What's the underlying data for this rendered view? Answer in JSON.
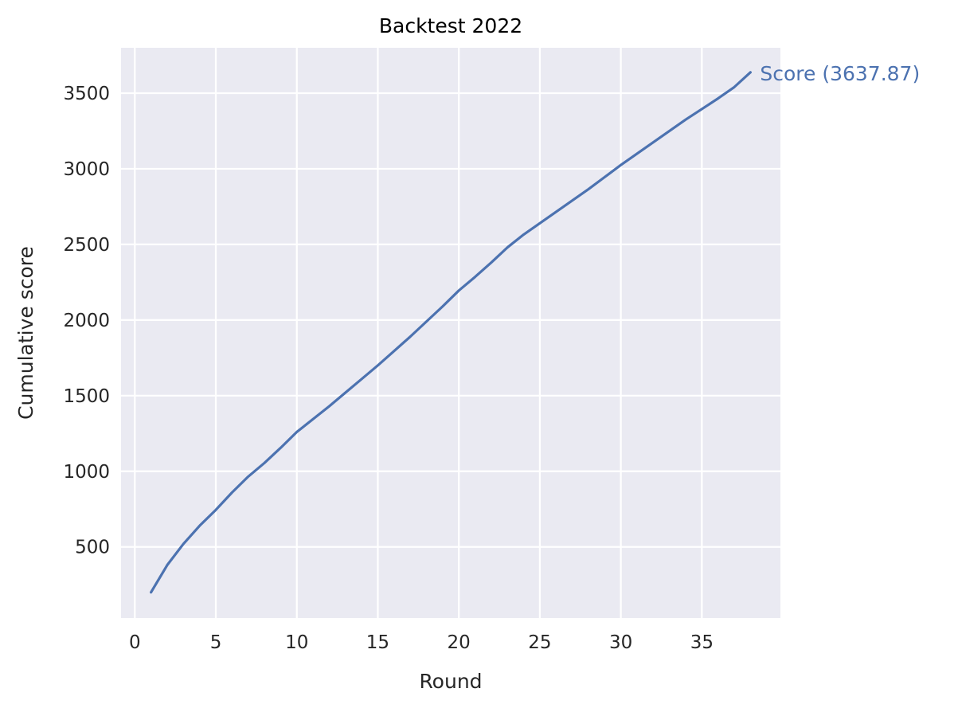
{
  "chart_data": {
    "type": "line",
    "title": "Backtest 2022",
    "xlabel": "Round",
    "ylabel": "Cumulative score",
    "xlim": [
      -0.85,
      39.85
    ],
    "ylim": [
      30,
      3800
    ],
    "xticks": [
      0,
      5,
      10,
      15,
      20,
      25,
      30,
      35
    ],
    "yticks": [
      500,
      1000,
      1500,
      2000,
      2500,
      3000,
      3500
    ],
    "grid": true,
    "legend": "none",
    "colors": {
      "plot_background": "#eaeaf2",
      "grid": "#ffffff",
      "line": "#4c72b0",
      "text": "#262626"
    },
    "series": [
      {
        "end_label": "Score (3637.87)",
        "x": [
          1,
          2,
          3,
          4,
          5,
          6,
          7,
          8,
          9,
          10,
          11,
          12,
          13,
          14,
          15,
          16,
          17,
          18,
          19,
          20,
          21,
          22,
          23,
          24,
          25,
          26,
          27,
          28,
          29,
          30,
          31,
          32,
          33,
          34,
          35,
          36,
          37,
          38
        ],
        "values": [
          200,
          380,
          520,
          640,
          745,
          860,
          965,
          1055,
          1155,
          1260,
          1345,
          1430,
          1520,
          1610,
          1700,
          1795,
          1890,
          1990,
          2090,
          2195,
          2285,
          2380,
          2480,
          2565,
          2640,
          2715,
          2790,
          2865,
          2945,
          3025,
          3100,
          3175,
          3250,
          3325,
          3395,
          3465,
          3540,
          3637.87
        ]
      }
    ]
  }
}
